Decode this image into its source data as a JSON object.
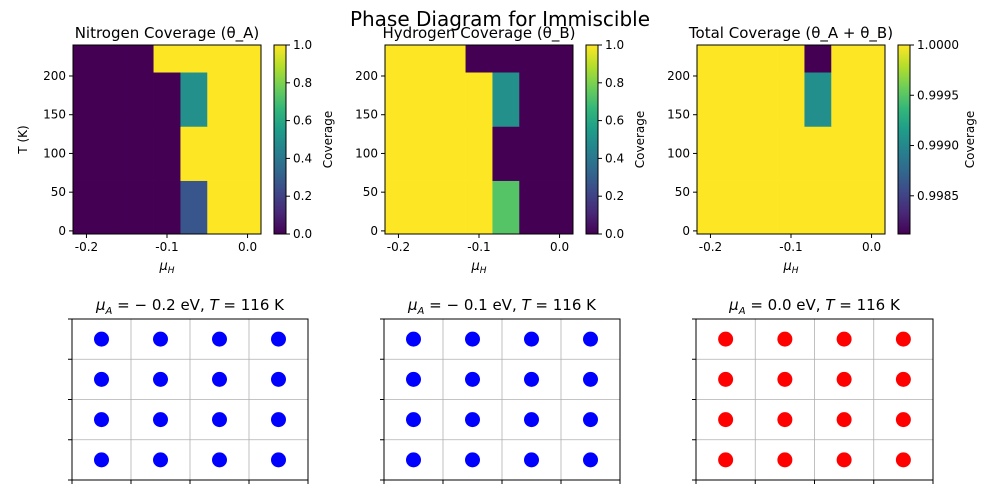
{
  "figure": {
    "title": "Phase Diagram for Immiscible"
  },
  "colors": {
    "viridis": [
      "#440154",
      "#482878",
      "#3e4989",
      "#31688e",
      "#26828e",
      "#1f9e89",
      "#35b779",
      "#6ece58",
      "#b5de2b",
      "#fde725"
    ],
    "grid": "#b0b0b0",
    "blue_marker": "#0000ff",
    "red_marker": "#ff0000"
  },
  "chart_data": [
    {
      "type": "heatmap",
      "title": "Nitrogen Coverage (θ_A)",
      "xlabel": "μ_H",
      "ylabel": "T (K)",
      "x_edges": [
        -0.2167,
        -0.15,
        -0.1167,
        -0.0833,
        -0.05,
        0.0167
      ],
      "y_edges": [
        -4,
        65,
        135,
        205,
        240
      ],
      "xlim": [
        -0.2167,
        0.0167
      ],
      "ylim": [
        -4,
        240
      ],
      "xticks": [
        {
          "v": -0.2,
          "label": "-0.2"
        },
        {
          "v": -0.1,
          "label": "-0.1"
        },
        {
          "v": 0.0,
          "label": "0.0"
        }
      ],
      "yticks": [
        {
          "v": 0,
          "label": "0"
        },
        {
          "v": 50,
          "label": "50"
        },
        {
          "v": 100,
          "label": "100"
        },
        {
          "v": 150,
          "label": "150"
        },
        {
          "v": 200,
          "label": "200"
        }
      ],
      "values": [
        [
          0.0,
          0.0,
          0.0,
          0.27,
          1.0
        ],
        [
          0.0,
          0.0,
          0.0,
          1.0,
          1.0
        ],
        [
          0.0,
          0.0,
          0.0,
          0.5,
          1.0
        ],
        [
          0.0,
          0.0,
          1.0,
          1.0,
          1.0
        ]
      ],
      "colorbar": {
        "label": "Coverage",
        "vmin": 0.0,
        "vmax": 1.0,
        "ticks": [
          {
            "v": 0.0,
            "label": "0.0"
          },
          {
            "v": 0.2,
            "label": "0.2"
          },
          {
            "v": 0.4,
            "label": "0.4"
          },
          {
            "v": 0.6,
            "label": "0.6"
          },
          {
            "v": 0.8,
            "label": "0.8"
          },
          {
            "v": 1.0,
            "label": "1.0"
          }
        ]
      }
    },
    {
      "type": "heatmap",
      "title": "Hydrogen Coverage (θ_B)",
      "xlabel": "μ_H",
      "ylabel": "",
      "x_edges": [
        -0.2167,
        -0.15,
        -0.1167,
        -0.0833,
        -0.05,
        0.0167
      ],
      "y_edges": [
        -4,
        65,
        135,
        205,
        240
      ],
      "xlim": [
        -0.2167,
        0.0167
      ],
      "ylim": [
        -4,
        240
      ],
      "xticks": [
        {
          "v": -0.2,
          "label": "-0.2"
        },
        {
          "v": -0.1,
          "label": "-0.1"
        },
        {
          "v": 0.0,
          "label": "0.0"
        }
      ],
      "yticks": [
        {
          "v": 0,
          "label": "0"
        },
        {
          "v": 50,
          "label": "50"
        },
        {
          "v": 100,
          "label": "100"
        },
        {
          "v": 150,
          "label": "150"
        },
        {
          "v": 200,
          "label": "200"
        }
      ],
      "values": [
        [
          1.0,
          1.0,
          1.0,
          0.73,
          0.0
        ],
        [
          1.0,
          1.0,
          1.0,
          0.0,
          0.0
        ],
        [
          1.0,
          1.0,
          1.0,
          0.5,
          0.0
        ],
        [
          1.0,
          1.0,
          0.0,
          0.0,
          0.0
        ]
      ],
      "colorbar": {
        "label": "Coverage",
        "vmin": 0.0,
        "vmax": 1.0,
        "ticks": [
          {
            "v": 0.0,
            "label": "0.0"
          },
          {
            "v": 0.2,
            "label": "0.2"
          },
          {
            "v": 0.4,
            "label": "0.4"
          },
          {
            "v": 0.6,
            "label": "0.6"
          },
          {
            "v": 0.8,
            "label": "0.8"
          },
          {
            "v": 1.0,
            "label": "1.0"
          }
        ]
      }
    },
    {
      "type": "heatmap",
      "title": "Total Coverage (θ_A + θ_B)",
      "xlabel": "μ_H",
      "ylabel": "",
      "x_edges": [
        -0.2167,
        -0.15,
        -0.1167,
        -0.0833,
        -0.05,
        0.0167
      ],
      "y_edges": [
        -4,
        65,
        135,
        205,
        240
      ],
      "xlim": [
        -0.2167,
        0.0167
      ],
      "ylim": [
        -4,
        240
      ],
      "xticks": [
        {
          "v": -0.2,
          "label": "-0.2"
        },
        {
          "v": -0.1,
          "label": "-0.1"
        },
        {
          "v": 0.0,
          "label": "0.0"
        }
      ],
      "yticks": [
        {
          "v": 0,
          "label": "0"
        },
        {
          "v": 50,
          "label": "50"
        },
        {
          "v": 100,
          "label": "100"
        },
        {
          "v": 150,
          "label": "150"
        },
        {
          "v": 200,
          "label": "200"
        }
      ],
      "values": [
        [
          1.0,
          1.0,
          1.0,
          1.0,
          1.0
        ],
        [
          1.0,
          1.0,
          1.0,
          1.0,
          1.0
        ],
        [
          1.0,
          1.0,
          1.0,
          0.99905,
          1.0
        ],
        [
          1.0,
          1.0,
          1.0,
          0.99812,
          1.0
        ]
      ],
      "colorbar": {
        "label": "Coverage",
        "vmin": 0.99812,
        "vmax": 1.0,
        "ticks": [
          {
            "v": 0.9985,
            "label": "0.9985"
          },
          {
            "v": 0.999,
            "label": "0.9990"
          },
          {
            "v": 0.9995,
            "label": "0.9995"
          },
          {
            "v": 1.0,
            "label": "1.0000"
          }
        ]
      }
    },
    {
      "type": "scatter",
      "title": "μ_A = − 0.2 eV, T = 116 K",
      "title_parts": {
        "mu": "μ",
        "sub": "A",
        "value": " = − 0.2 eV, ",
        "t": "T",
        "rest": " = 116 K"
      },
      "xlim": [
        0,
        4
      ],
      "ylim": [
        0,
        4
      ],
      "grid": true,
      "color": "#0000ff",
      "points": [
        [
          0.5,
          0.5
        ],
        [
          1.5,
          0.5
        ],
        [
          2.5,
          0.5
        ],
        [
          3.5,
          0.5
        ],
        [
          0.5,
          1.5
        ],
        [
          1.5,
          1.5
        ],
        [
          2.5,
          1.5
        ],
        [
          3.5,
          1.5
        ],
        [
          0.5,
          2.5
        ],
        [
          1.5,
          2.5
        ],
        [
          2.5,
          2.5
        ],
        [
          3.5,
          2.5
        ],
        [
          0.5,
          3.5
        ],
        [
          1.5,
          3.5
        ],
        [
          2.5,
          3.5
        ],
        [
          3.5,
          3.5
        ]
      ]
    },
    {
      "type": "scatter",
      "title": "μ_A = − 0.1 eV, T = 116 K",
      "title_parts": {
        "mu": "μ",
        "sub": "A",
        "value": " = − 0.1 eV, ",
        "t": "T",
        "rest": " = 116 K"
      },
      "xlim": [
        0,
        4
      ],
      "ylim": [
        0,
        4
      ],
      "grid": true,
      "color": "#0000ff",
      "points": [
        [
          0.5,
          0.5
        ],
        [
          1.5,
          0.5
        ],
        [
          2.5,
          0.5
        ],
        [
          3.5,
          0.5
        ],
        [
          0.5,
          1.5
        ],
        [
          1.5,
          1.5
        ],
        [
          2.5,
          1.5
        ],
        [
          3.5,
          1.5
        ],
        [
          0.5,
          2.5
        ],
        [
          1.5,
          2.5
        ],
        [
          2.5,
          2.5
        ],
        [
          3.5,
          2.5
        ],
        [
          0.5,
          3.5
        ],
        [
          1.5,
          3.5
        ],
        [
          2.5,
          3.5
        ],
        [
          3.5,
          3.5
        ]
      ]
    },
    {
      "type": "scatter",
      "title": "μ_A = 0.0 eV, T = 116 K",
      "title_parts": {
        "mu": "μ",
        "sub": "A",
        "value": " = 0.0 eV, ",
        "t": "T",
        "rest": " = 116 K"
      },
      "xlim": [
        0,
        4
      ],
      "ylim": [
        0,
        4
      ],
      "grid": true,
      "color": "#ff0000",
      "points": [
        [
          0.5,
          0.5
        ],
        [
          1.5,
          0.5
        ],
        [
          2.5,
          0.5
        ],
        [
          3.5,
          0.5
        ],
        [
          0.5,
          1.5
        ],
        [
          1.5,
          1.5
        ],
        [
          2.5,
          1.5
        ],
        [
          3.5,
          1.5
        ],
        [
          0.5,
          2.5
        ],
        [
          1.5,
          2.5
        ],
        [
          2.5,
          2.5
        ],
        [
          3.5,
          2.5
        ],
        [
          0.5,
          3.5
        ],
        [
          1.5,
          3.5
        ],
        [
          2.5,
          3.5
        ],
        [
          3.5,
          3.5
        ]
      ]
    }
  ]
}
